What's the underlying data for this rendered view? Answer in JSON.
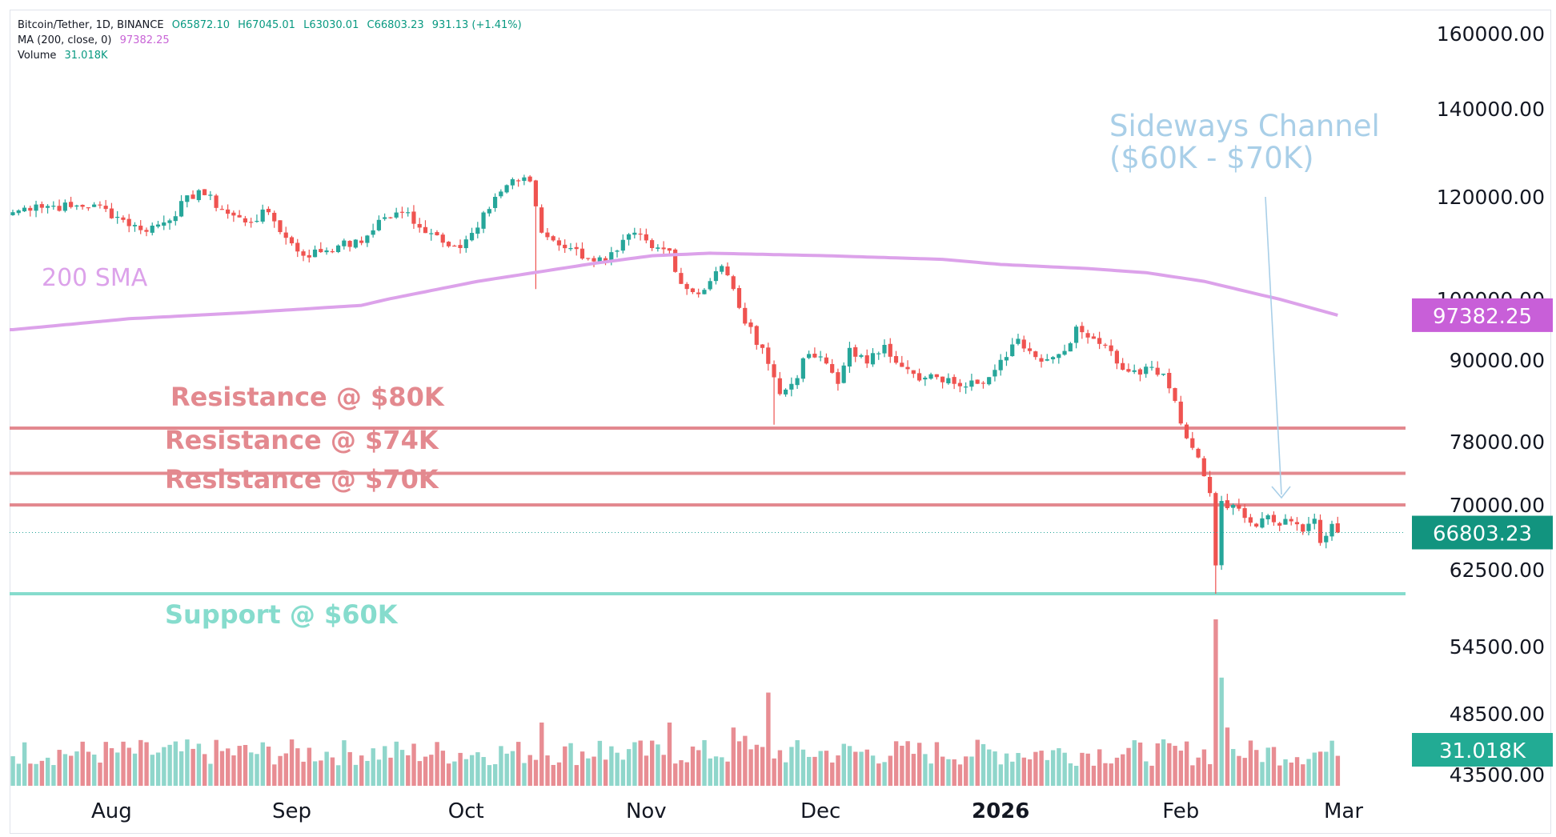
{
  "colors": {
    "bullish": "#26a69a",
    "bearish": "#ef5350",
    "vol_bull": "#8fd6cb",
    "vol_bear": "#e88d93",
    "sma": "#dca2ea",
    "sma_label_bg": "#c85fd8",
    "resistance": "#e3898f",
    "support": "#86dccd",
    "channel_note": "#a9cfe8",
    "price_tag_bg": "#12947f",
    "volume_tag_bg": "#22ab94"
  },
  "header": {
    "symbol": "Bitcoin/Tether, 1D, BINANCE",
    "open": "O65872.10",
    "high": "H67045.01",
    "low": "L63030.01",
    "close": "C66803.23",
    "change": "931.13 (+1.41%)",
    "ma_label": "MA (200, close, 0)",
    "ma_value": "97382.25",
    "volume_label": "Volume",
    "volume_value": "31.018K"
  },
  "annotations": {
    "sma": "200 SMA",
    "res80": "Resistance @ $80K",
    "res74": "Resistance @ $74K",
    "res70": "Resistance @ $70K",
    "support": "Support @ $60K",
    "channel_line1": "Sideways Channel",
    "channel_line2": "($60K - $70K)"
  },
  "tags": {
    "sma_value": "97382.25",
    "last_price": "66803.23",
    "volume": "31.018K"
  },
  "chart_data": {
    "type": "candlestick",
    "title": "Bitcoin/Tether, 1D, BINANCE",
    "y_ticks": [
      "160000.00",
      "140000.00",
      "120000.00",
      "100000.00",
      "90000.00",
      "78000.00",
      "70000.00",
      "62500.00",
      "54500.00",
      "48500.00",
      "43500.00"
    ],
    "x_ticks": [
      {
        "label": "Aug",
        "day": 17,
        "bold": false
      },
      {
        "label": "Sep",
        "day": 48,
        "bold": false
      },
      {
        "label": "Oct",
        "day": 78,
        "bold": false
      },
      {
        "label": "Nov",
        "day": 109,
        "bold": false
      },
      {
        "label": "Dec",
        "day": 139,
        "bold": false
      },
      {
        "label": "2026",
        "day": 170,
        "bold": true
      },
      {
        "label": "Feb",
        "day": 201,
        "bold": false
      },
      {
        "label": "Mar",
        "day": 229,
        "bold": false
      }
    ],
    "levels": {
      "res80": 80000,
      "res74": 74000,
      "res70": 70000,
      "support": 60000
    },
    "last_close": 66803.23,
    "key_points": [
      {
        "day": 0,
        "price": 117000
      },
      {
        "day": 4,
        "price": 118500
      },
      {
        "day": 10,
        "price": 118000
      },
      {
        "day": 14,
        "price": 118500
      },
      {
        "day": 19,
        "price": 115500
      },
      {
        "day": 22,
        "price": 113500
      },
      {
        "day": 26,
        "price": 115000
      },
      {
        "day": 32,
        "price": 121500
      },
      {
        "day": 36,
        "price": 117500
      },
      {
        "day": 40,
        "price": 115000
      },
      {
        "day": 44,
        "price": 117000
      },
      {
        "day": 47,
        "price": 112000
      },
      {
        "day": 50,
        "price": 108500
      },
      {
        "day": 56,
        "price": 110500
      },
      {
        "day": 60,
        "price": 111000
      },
      {
        "day": 63,
        "price": 115500
      },
      {
        "day": 68,
        "price": 117000
      },
      {
        "day": 70,
        "price": 114000
      },
      {
        "day": 73,
        "price": 112500
      },
      {
        "day": 77,
        "price": 110000
      },
      {
        "day": 80,
        "price": 114000
      },
      {
        "day": 83,
        "price": 120000
      },
      {
        "day": 86,
        "price": 124000
      },
      {
        "day": 89,
        "price": 123500
      },
      {
        "day": 91,
        "price": 113000
      },
      {
        "day": 93,
        "price": 111500
      },
      {
        "day": 96,
        "price": 110000
      },
      {
        "day": 99,
        "price": 108000
      },
      {
        "day": 102,
        "price": 107500
      },
      {
        "day": 104,
        "price": 109500
      },
      {
        "day": 107,
        "price": 113000
      },
      {
        "day": 110,
        "price": 110000
      },
      {
        "day": 113,
        "price": 109500
      },
      {
        "day": 115,
        "price": 103000
      },
      {
        "day": 118,
        "price": 101000
      },
      {
        "day": 122,
        "price": 106500
      },
      {
        "day": 124,
        "price": 102000
      },
      {
        "day": 126,
        "price": 96000
      },
      {
        "day": 129,
        "price": 92000
      },
      {
        "day": 132,
        "price": 85000
      },
      {
        "day": 134,
        "price": 86500
      },
      {
        "day": 137,
        "price": 91000
      },
      {
        "day": 140,
        "price": 89500
      },
      {
        "day": 142,
        "price": 86500
      },
      {
        "day": 144,
        "price": 92000
      },
      {
        "day": 147,
        "price": 89500
      },
      {
        "day": 150,
        "price": 92500
      },
      {
        "day": 153,
        "price": 89000
      },
      {
        "day": 156,
        "price": 87000
      },
      {
        "day": 159,
        "price": 87500
      },
      {
        "day": 162,
        "price": 86500
      },
      {
        "day": 165,
        "price": 87000
      },
      {
        "day": 168,
        "price": 87500
      },
      {
        "day": 171,
        "price": 90500
      },
      {
        "day": 173,
        "price": 93500
      },
      {
        "day": 176,
        "price": 90500
      },
      {
        "day": 179,
        "price": 90500
      },
      {
        "day": 181,
        "price": 91500
      },
      {
        "day": 183,
        "price": 95500
      },
      {
        "day": 186,
        "price": 93500
      },
      {
        "day": 188,
        "price": 92500
      },
      {
        "day": 190,
        "price": 89500
      },
      {
        "day": 193,
        "price": 88500
      },
      {
        "day": 196,
        "price": 89000
      },
      {
        "day": 198,
        "price": 88000
      },
      {
        "day": 200,
        "price": 84000
      },
      {
        "day": 202,
        "price": 78500
      },
      {
        "day": 204,
        "price": 76000
      },
      {
        "day": 206,
        "price": 71500
      },
      {
        "day": 207,
        "price": 63000
      },
      {
        "day": 208,
        "price": 70500
      },
      {
        "day": 210,
        "price": 70000
      },
      {
        "day": 212,
        "price": 68500
      },
      {
        "day": 214,
        "price": 67500
      },
      {
        "day": 216,
        "price": 68800
      },
      {
        "day": 218,
        "price": 67600
      },
      {
        "day": 220,
        "price": 68100
      },
      {
        "day": 222,
        "price": 66900
      },
      {
        "day": 224,
        "price": 68400
      },
      {
        "day": 225,
        "price": 65600
      },
      {
        "day": 227,
        "price": 67800
      },
      {
        "day": 228,
        "price": 66800
      }
    ],
    "sma": [
      {
        "day": 0,
        "price": 95000
      },
      {
        "day": 20,
        "price": 96800
      },
      {
        "day": 40,
        "price": 97800
      },
      {
        "day": 60,
        "price": 99000
      },
      {
        "day": 80,
        "price": 103500
      },
      {
        "day": 100,
        "price": 107000
      },
      {
        "day": 110,
        "price": 108500
      },
      {
        "day": 120,
        "price": 109000
      },
      {
        "day": 140,
        "price": 108500
      },
      {
        "day": 160,
        "price": 107800
      },
      {
        "day": 170,
        "price": 106800
      },
      {
        "day": 185,
        "price": 106000
      },
      {
        "day": 195,
        "price": 105200
      },
      {
        "day": 205,
        "price": 103500
      },
      {
        "day": 215,
        "price": 100800
      },
      {
        "day": 228,
        "price": 97382
      }
    ],
    "volume_spikes": [
      {
        "day": 207,
        "value": 1.0
      },
      {
        "day": 208,
        "value": 0.65
      },
      {
        "day": 209,
        "value": 0.35
      },
      {
        "day": 130,
        "value": 0.56
      },
      {
        "day": 91,
        "value": 0.38
      },
      {
        "day": 113,
        "value": 0.38
      },
      {
        "day": 126,
        "value": 0.3
      },
      {
        "day": 101,
        "value": 0.27
      },
      {
        "day": 124,
        "value": 0.35
      }
    ],
    "last_volume": 31.018
  }
}
